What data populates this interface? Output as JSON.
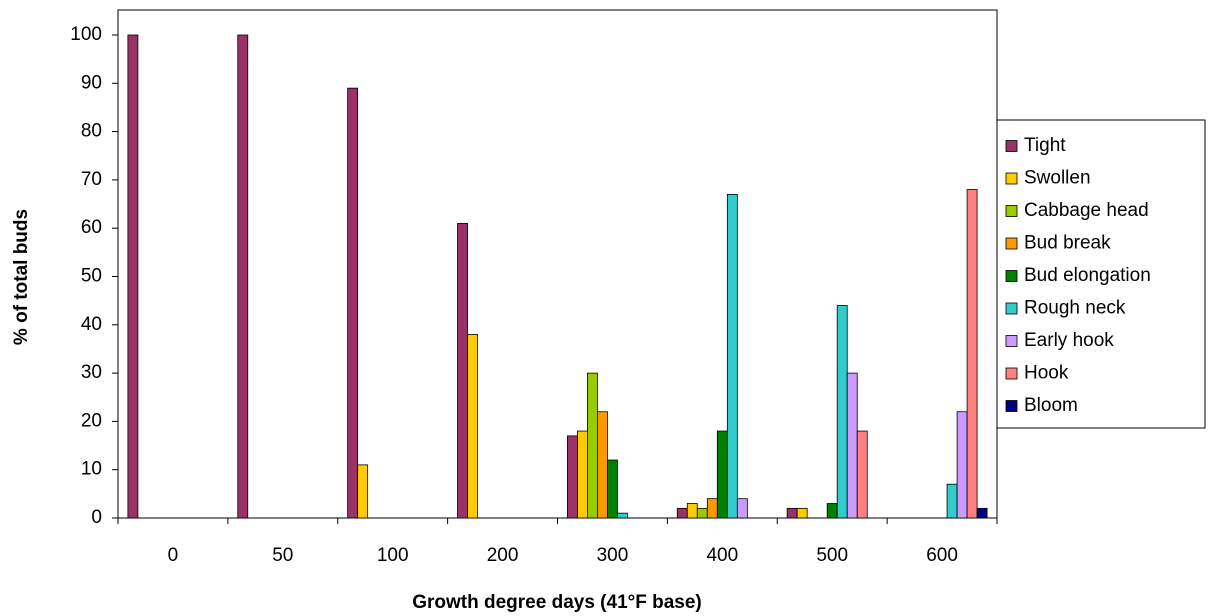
{
  "chart_data": {
    "type": "bar",
    "x_label": "Growth degree days (41°F base)",
    "y_label": "% of total buds",
    "categories": [
      "0",
      "50",
      "100",
      "200",
      "300",
      "400",
      "500",
      "600"
    ],
    "series": [
      {
        "name": "Tight",
        "color": "#993366",
        "values": [
          100,
          100,
          89,
          61,
          17,
          2,
          2,
          0
        ]
      },
      {
        "name": "Swollen",
        "color": "#ffcc00",
        "values": [
          0,
          0,
          11,
          38,
          18,
          3,
          2,
          0
        ]
      },
      {
        "name": "Cabbage head",
        "color": "#99cc00",
        "values": [
          0,
          0,
          0,
          0,
          30,
          2,
          0,
          0
        ]
      },
      {
        "name": "Bud break",
        "color": "#ff9900",
        "values": [
          0,
          0,
          0,
          0,
          22,
          4,
          0,
          0
        ]
      },
      {
        "name": "Bud elongation",
        "color": "#008000",
        "values": [
          0,
          0,
          0,
          0,
          12,
          18,
          3,
          0
        ]
      },
      {
        "name": "Rough neck",
        "color": "#33cccc",
        "values": [
          0,
          0,
          0,
          0,
          1,
          67,
          44,
          7
        ]
      },
      {
        "name": "Early hook",
        "color": "#cc99ff",
        "values": [
          0,
          0,
          0,
          0,
          0,
          4,
          30,
          22
        ]
      },
      {
        "name": "Hook",
        "color": "#ff8080",
        "values": [
          0,
          0,
          0,
          0,
          0,
          0,
          18,
          68
        ]
      },
      {
        "name": "Bloom",
        "color": "#000080",
        "values": [
          0,
          0,
          0,
          0,
          0,
          0,
          0,
          2
        ]
      }
    ],
    "ylim": [
      0,
      100
    ],
    "yticks": [
      0,
      10,
      20,
      30,
      40,
      50,
      60,
      70,
      80,
      90,
      100
    ],
    "grid": false,
    "legend": "right"
  }
}
